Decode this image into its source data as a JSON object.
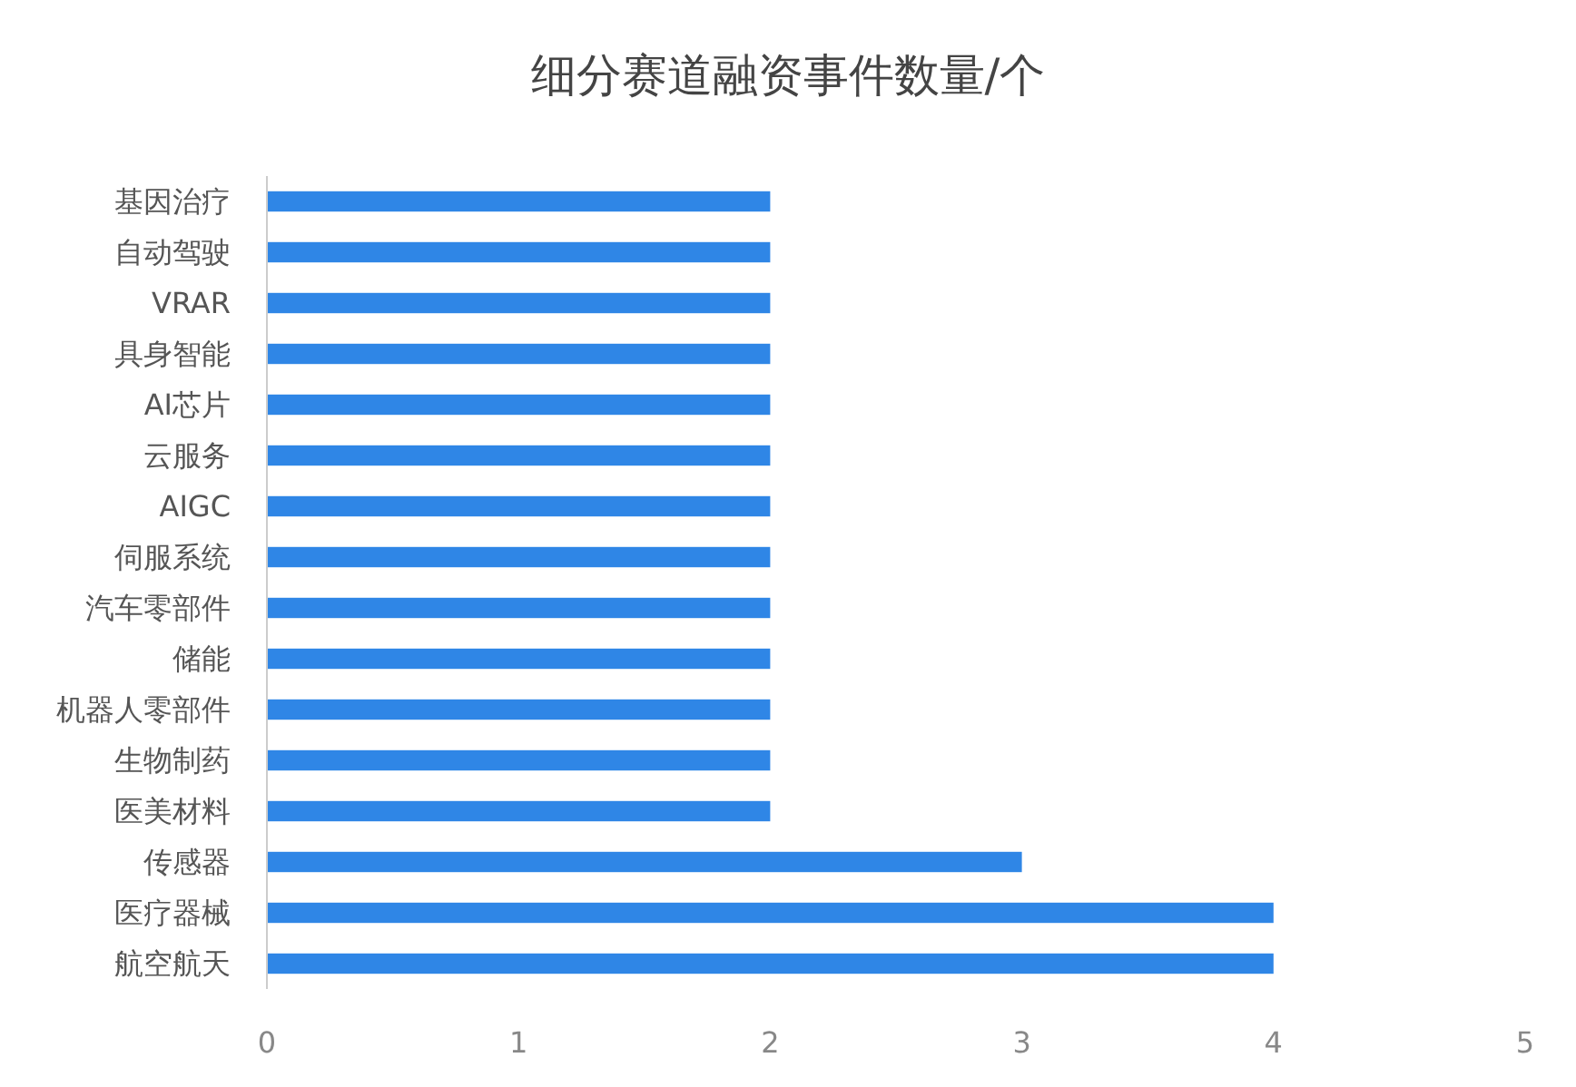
{
  "chart_data": {
    "type": "bar",
    "orientation": "horizontal",
    "title": "细分赛道融资事件数量/个",
    "categories": [
      "基因治疗",
      "自动驾驶",
      "VRAR",
      "具身智能",
      "AI芯片",
      "云服务",
      "AIGC",
      "伺服系统",
      "汽车零部件",
      "储能",
      "机器人零部件",
      "生物制药",
      "医美材料",
      "传感器",
      "医疗器械",
      "航空航天"
    ],
    "values": [
      2,
      2,
      2,
      2,
      2,
      2,
      2,
      2,
      2,
      2,
      2,
      2,
      2,
      3,
      4,
      4
    ],
    "color": "#2f86e6",
    "xlim": [
      0,
      5
    ],
    "xticks": [
      0,
      1,
      2,
      3,
      4,
      5
    ],
    "grid": false
  }
}
